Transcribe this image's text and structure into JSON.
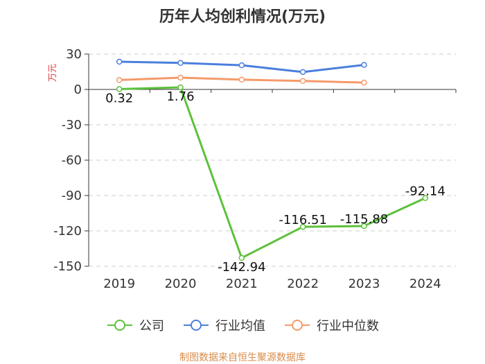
{
  "title": "历年人均创利情况(万元)",
  "source": "制图数据来自恒生聚源数据库",
  "chart_data": {
    "type": "line",
    "title": "历年人均创利情况(万元)",
    "ylabel": "万元",
    "categories": [
      "2019",
      "2020",
      "2021",
      "2022",
      "2023",
      "2024"
    ],
    "ylim": [
      -150,
      30
    ],
    "yticks": [
      30,
      0,
      -30,
      -60,
      -90,
      -120,
      -150
    ],
    "grid": true,
    "legend_position": "bottom",
    "series": [
      {
        "name": "公司",
        "color": "#5cc13a",
        "values": [
          0.32,
          1.76,
          -142.94,
          -116.51,
          -115.88,
          -92.14
        ],
        "labels": true
      },
      {
        "name": "行业均值",
        "color": "#4a7fdc",
        "values": [
          23.5,
          22.5,
          20.5,
          14.8,
          20.8,
          null
        ],
        "labels": false
      },
      {
        "name": "行业中位数",
        "color": "#f59a6a",
        "values": [
          8.0,
          10.0,
          8.3,
          7.2,
          5.8,
          null
        ],
        "labels": false
      }
    ]
  }
}
